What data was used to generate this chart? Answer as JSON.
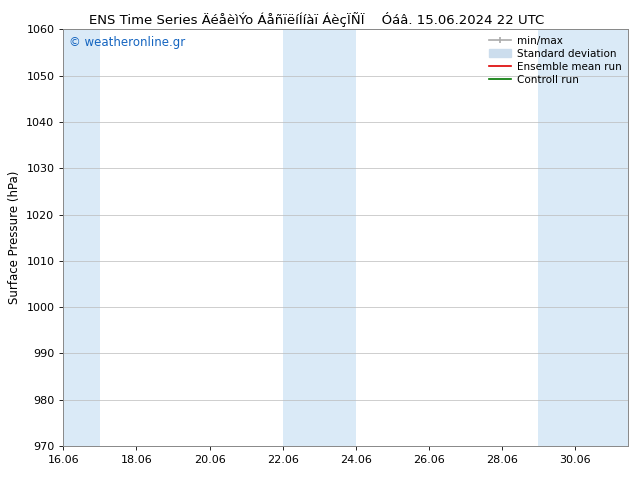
{
  "title_left": "ENS Time Series ÄéåèìÝo ÁåñïëíÍíàï ÁèçÏÑÏ",
  "title_right": "Óáâ. 15.06.2024 22 UTC",
  "ylabel": "Surface Pressure (hPa)",
  "xlim_start": 16.06,
  "xlim_end": 31.5,
  "ylim_bottom": 970,
  "ylim_top": 1060,
  "yticks": [
    970,
    980,
    990,
    1000,
    1010,
    1020,
    1030,
    1040,
    1050,
    1060
  ],
  "xtick_labels": [
    "16.06",
    "18.06",
    "20.06",
    "22.06",
    "24.06",
    "26.06",
    "28.06",
    "30.06"
  ],
  "xtick_positions": [
    16.06,
    18.06,
    20.06,
    22.06,
    24.06,
    26.06,
    28.06,
    30.06
  ],
  "shaded_bands": [
    {
      "x_start": 16.06,
      "x_end": 17.06
    },
    {
      "x_start": 22.06,
      "x_end": 24.06
    },
    {
      "x_start": 29.06,
      "x_end": 31.5
    }
  ],
  "shaded_color": "#daeaf7",
  "background_color": "#ffffff",
  "watermark_text": "© weatheronline.gr",
  "watermark_color": "#1565c0",
  "legend_items": [
    {
      "label": "min/max",
      "color": "#aaaaaa",
      "type": "errorbar"
    },
    {
      "label": "Standard deviation",
      "color": "#ccdded",
      "type": "patch"
    },
    {
      "label": "Ensemble mean run",
      "color": "#dd0000",
      "type": "line"
    },
    {
      "label": "Controll run",
      "color": "#007700",
      "type": "line"
    }
  ],
  "grid_color": "#bbbbbb",
  "spine_color": "#888888",
  "title_fontsize": 9.5,
  "ylabel_fontsize": 8.5,
  "tick_fontsize": 8,
  "legend_fontsize": 7.5,
  "watermark_fontsize": 8.5
}
